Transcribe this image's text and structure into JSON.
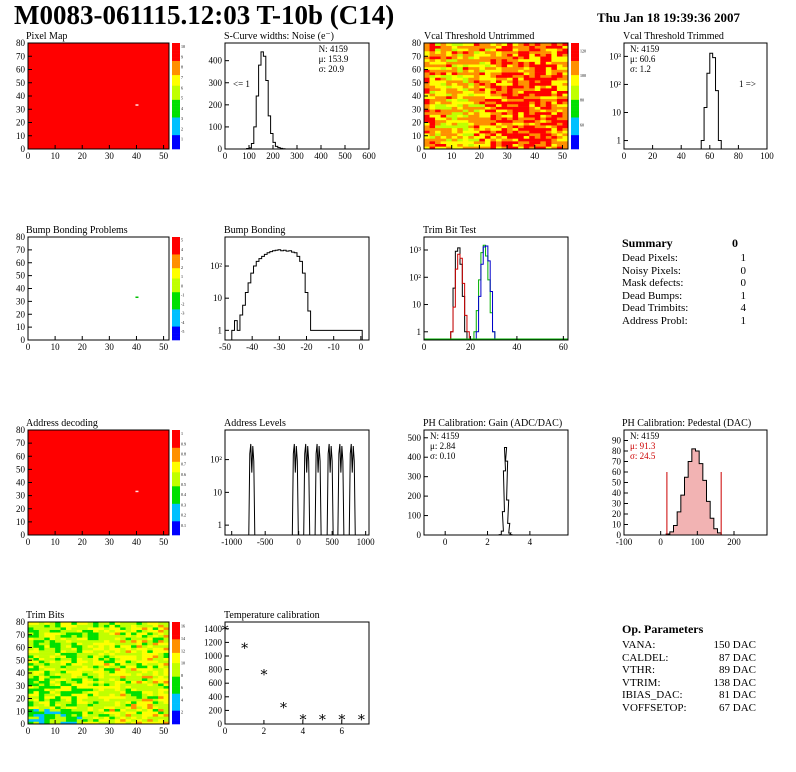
{
  "header": {
    "title": "M0083-061115.12:03 T-10b (C14)",
    "date": "Thu Jan 18 19:39:36 2007"
  },
  "colors": {
    "map_red": "#ff0000",
    "black": "#000000",
    "red": "#cc0000",
    "green": "#00b000",
    "blue": "#0000cc",
    "fill_pink": "#f2b3b3"
  },
  "summary": {
    "title": "Summary",
    "total": "0",
    "items": [
      {
        "label": "Dead Pixels:",
        "value": "1"
      },
      {
        "label": "Noisy Pixels:",
        "value": "0"
      },
      {
        "label": "Mask defects:",
        "value": "0"
      },
      {
        "label": "Dead Bumps:",
        "value": "1"
      },
      {
        "label": "Dead Trimbits:",
        "value": "4"
      },
      {
        "label": "Address Probl:",
        "value": "1"
      }
    ]
  },
  "op_params": {
    "title": "Op. Parameters",
    "items": [
      {
        "label": "VANA:",
        "value": "150 DAC"
      },
      {
        "label": "CALDEL:",
        "value": "87 DAC"
      },
      {
        "label": "VTHR:",
        "value": "89 DAC"
      },
      {
        "label": "VTRIM:",
        "value": "138 DAC"
      },
      {
        "label": "IBIAS_DAC:",
        "value": "81 DAC"
      },
      {
        "label": "VOFFSETOP:",
        "value": "67 DAC"
      }
    ]
  },
  "chart_data": [
    {
      "id": "pixel-map",
      "type": "heatmap",
      "title": "Pixel Map",
      "xticks": [
        0,
        10,
        20,
        30,
        40,
        50
      ],
      "yticks": [
        0,
        10,
        20,
        30,
        40,
        50,
        60,
        70,
        80
      ],
      "xlim": [
        0,
        52
      ],
      "ylim": [
        0,
        80
      ],
      "uniform_color": "#ff0000",
      "defects": [
        {
          "x": 40,
          "y": 33
        }
      ],
      "palette_ticks": [
        "1",
        "2",
        "3",
        "4",
        "5",
        "6",
        "7",
        "8",
        "9",
        "10"
      ]
    },
    {
      "id": "noise",
      "type": "line",
      "title": "S-Curve widths: Noise (e⁻)",
      "xticks": [
        0,
        100,
        200,
        300,
        400,
        500,
        600
      ],
      "yticks": [
        0,
        100,
        200,
        300,
        400
      ],
      "xlim": [
        0,
        600
      ],
      "ylim": [
        0,
        480
      ],
      "x": [
        95,
        105,
        115,
        125,
        135,
        145,
        155,
        165,
        175,
        185,
        195,
        205,
        215,
        225,
        235,
        245
      ],
      "y": [
        2,
        5,
        25,
        100,
        240,
        380,
        440,
        420,
        310,
        150,
        70,
        30,
        12,
        6,
        3,
        1
      ],
      "stats": [
        "N: 4159",
        "μ: 153.9",
        "σ: 20.9"
      ],
      "annotation": "<= 1"
    },
    {
      "id": "vcal-untrimmed",
      "type": "heatmap",
      "title": "Vcal Threshold Untrimmed",
      "xticks": [
        0,
        10,
        20,
        30,
        40,
        50
      ],
      "yticks": [
        0,
        10,
        20,
        30,
        40,
        50,
        60,
        70,
        80
      ],
      "xlim": [
        0,
        52
      ],
      "ylim": [
        0,
        80
      ],
      "palette_ticks": [
        "60",
        "80",
        "100",
        "120"
      ]
    },
    {
      "id": "vcal-trimmed",
      "type": "line",
      "title": "Vcal Threshold Trimmed",
      "xticks": [
        0,
        20,
        40,
        60,
        80,
        100
      ],
      "ytick_labels": [
        "1",
        "10",
        "10²",
        "10³"
      ],
      "log_y": true,
      "xlim": [
        0,
        100
      ],
      "ylim": [
        0.5,
        3000
      ],
      "x": [
        55,
        57,
        59,
        61,
        63,
        65,
        67
      ],
      "y": [
        1,
        15,
        250,
        1300,
        900,
        60,
        1
      ],
      "stats": [
        "N: 4159",
        "μ: 60.6",
        "σ: 1.2"
      ],
      "annotation": "1 =>"
    },
    {
      "id": "bump-map",
      "type": "heatmap",
      "title": "Bump Bonding Problems",
      "xticks": [
        0,
        10,
        20,
        30,
        40,
        50
      ],
      "yticks": [
        0,
        10,
        20,
        30,
        40,
        50,
        60,
        70,
        80
      ],
      "xlim": [
        0,
        52
      ],
      "ylim": [
        0,
        80
      ],
      "defects": [
        {
          "x": 40,
          "y": 33
        }
      ],
      "palette_ticks": [
        "-5",
        "-4",
        "-3",
        "-2",
        "-1",
        "0",
        "1",
        "2",
        "3",
        "4",
        "5"
      ]
    },
    {
      "id": "bump-bonding",
      "type": "line",
      "title": "Bump Bonding",
      "xticks": [
        -50,
        -40,
        -30,
        -20,
        -10,
        0
      ],
      "ytick_labels": [
        "1",
        "10",
        "10²"
      ],
      "log_y": true,
      "xlim": [
        -50,
        3
      ],
      "ylim": [
        0.5,
        800
      ],
      "x": [
        -47,
        -46,
        -45,
        -44,
        -43,
        -42,
        -41,
        -40,
        -39,
        -38,
        -37,
        -36,
        -35,
        -34,
        -33,
        -32,
        -31,
        -30,
        -29,
        -28,
        -27,
        -26,
        -25,
        -24,
        -23,
        -22,
        -21,
        -20,
        -19,
        -18,
        -17,
        0
      ],
      "y": [
        1,
        2,
        1,
        3,
        6,
        15,
        30,
        60,
        100,
        140,
        170,
        200,
        230,
        260,
        280,
        300,
        310,
        320,
        300,
        310,
        290,
        300,
        270,
        260,
        200,
        140,
        60,
        15,
        4,
        1,
        1,
        1
      ]
    },
    {
      "id": "trim-bit",
      "type": "line",
      "title": "Trim Bit Test",
      "xticks": [
        0,
        20,
        40,
        60
      ],
      "ytick_labels": [
        "1",
        "10",
        "10²",
        "10³"
      ],
      "log_y": true,
      "xlim": [
        0,
        62
      ],
      "ylim": [
        0.5,
        3000
      ],
      "series": [
        {
          "name": "black",
          "x": [
            12,
            13,
            14,
            15,
            16,
            17,
            18
          ],
          "y": [
            1,
            40,
            900,
            1200,
            300,
            20,
            1
          ]
        },
        {
          "name": "red",
          "x": [
            12,
            13,
            14,
            15,
            16,
            17,
            18,
            19
          ],
          "y": [
            1,
            8,
            200,
            700,
            500,
            60,
            4,
            1
          ]
        },
        {
          "name": "green",
          "x": [
            22,
            23,
            24,
            25,
            26,
            27,
            28,
            29,
            30
          ],
          "y": [
            1,
            6,
            80,
            800,
            1500,
            600,
            80,
            5,
            1
          ]
        },
        {
          "name": "blue",
          "x": [
            23,
            24,
            25,
            26,
            27,
            28,
            29,
            30
          ],
          "y": [
            1,
            20,
            300,
            1300,
            1400,
            400,
            30,
            1
          ]
        }
      ]
    },
    {
      "id": "address-decoding",
      "type": "heatmap",
      "title": "Address decoding",
      "xticks": [
        0,
        10,
        20,
        30,
        40,
        50
      ],
      "yticks": [
        0,
        10,
        20,
        30,
        40,
        50,
        60,
        70,
        80
      ],
      "xlim": [
        0,
        52
      ],
      "ylim": [
        0,
        80
      ],
      "uniform_color": "#ff0000",
      "defects": [
        {
          "x": 40,
          "y": 33
        }
      ],
      "palette_ticks": [
        "0.1",
        "0.2",
        "0.3",
        "0.4",
        "0.5",
        "0.6",
        "0.7",
        "0.8",
        "0.9",
        "1"
      ]
    },
    {
      "id": "address-levels",
      "type": "line",
      "title": "Address Levels",
      "xticks": [
        -1000,
        -500,
        0,
        500,
        1000
      ],
      "ytick_labels": [
        "1",
        "10",
        "10²"
      ],
      "log_y": true,
      "xlim": [
        -1100,
        1050
      ],
      "ylim": [
        0.5,
        800
      ],
      "peaks": [
        -700,
        -50,
        120,
        290,
        470,
        630,
        800
      ]
    },
    {
      "id": "ph-gain",
      "type": "line",
      "title": "PH Calibration: Gain (ADC/DAC)",
      "xticks": [
        0,
        2,
        4
      ],
      "yticks": [
        0,
        100,
        200,
        300,
        400,
        500
      ],
      "xlim": [
        -1,
        5.8
      ],
      "ylim": [
        0,
        540
      ],
      "x": [
        2.6,
        2.7,
        2.75,
        2.8,
        2.85,
        2.9,
        2.95,
        3.0,
        3.05,
        3.1
      ],
      "y": [
        2,
        20,
        120,
        330,
        450,
        380,
        180,
        60,
        10,
        2
      ],
      "stats": [
        "N: 4159",
        "μ: 2.84",
        "σ: 0.10"
      ]
    },
    {
      "id": "ph-pedestal",
      "type": "line",
      "title": "PH Calibration: Pedestal (DAC)",
      "xticks": [
        -100,
        0,
        100,
        200
      ],
      "yticks": [
        0,
        10,
        20,
        30,
        40,
        50,
        60,
        70,
        80,
        90
      ],
      "xlim": [
        -100,
        290
      ],
      "ylim": [
        0,
        100
      ],
      "x": [
        20,
        30,
        40,
        50,
        60,
        70,
        80,
        90,
        100,
        110,
        120,
        130,
        140,
        150,
        160
      ],
      "y": [
        1,
        3,
        9,
        22,
        38,
        55,
        70,
        82,
        80,
        68,
        52,
        32,
        16,
        6,
        2
      ],
      "cuts": [
        17,
        165
      ],
      "stats": [
        "N: 4159",
        "μ: 91.3",
        "σ: 24.5"
      ]
    },
    {
      "id": "trim-bits",
      "type": "heatmap",
      "title": "Trim Bits",
      "xticks": [
        0,
        10,
        20,
        30,
        40,
        50
      ],
      "yticks": [
        0,
        10,
        20,
        30,
        40,
        50,
        60,
        70,
        80
      ],
      "xlim": [
        0,
        52
      ],
      "ylim": [
        0,
        80
      ],
      "palette_ticks": [
        "2",
        "4",
        "6",
        "8",
        "10",
        "12",
        "14",
        "16"
      ]
    },
    {
      "id": "temperature",
      "type": "scatter",
      "title": "Temperature calibration",
      "xticks": [
        0,
        2,
        4,
        6
      ],
      "yticks": [
        0,
        200,
        400,
        600,
        800,
        1000,
        1200,
        1400
      ],
      "xlim": [
        0,
        7.4
      ],
      "ylim": [
        0,
        1500
      ],
      "x": [
        0,
        1,
        2,
        3,
        4,
        5,
        6,
        7
      ],
      "y": [
        1430,
        1160,
        770,
        290,
        110,
        110,
        110,
        110
      ]
    }
  ]
}
